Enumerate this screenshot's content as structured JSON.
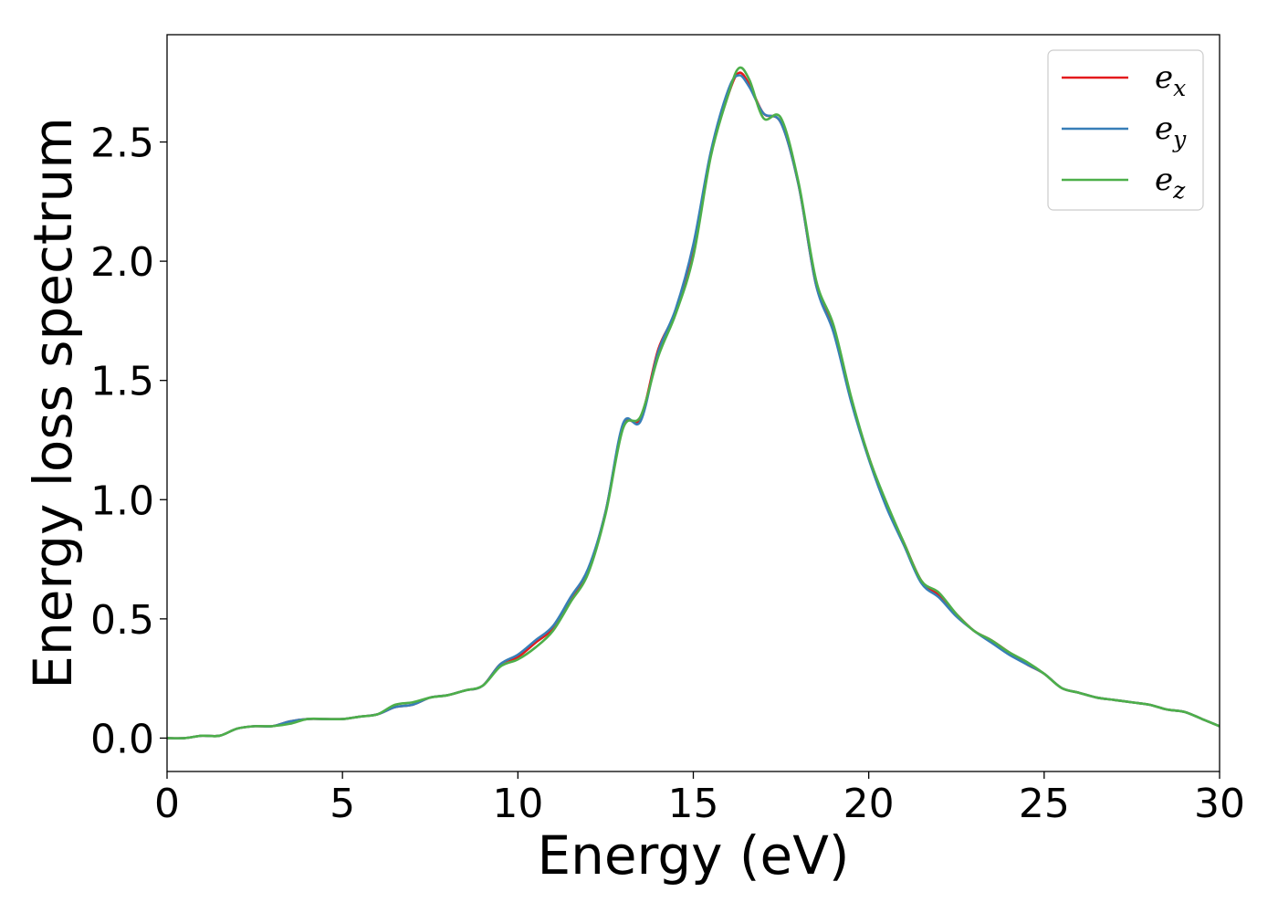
{
  "chart_data": {
    "type": "line",
    "title": "",
    "xlabel": "Energy (eV)",
    "ylabel": "Energy loss spectrum",
    "xlim": [
      0,
      30
    ],
    "ylim": [
      -0.14,
      2.95
    ],
    "xticks": [
      0,
      5,
      10,
      15,
      20,
      25,
      30
    ],
    "xtick_labels": [
      "0",
      "5",
      "10",
      "15",
      "20",
      "25",
      "30"
    ],
    "yticks": [
      0.0,
      0.5,
      1.0,
      1.5,
      2.0,
      2.5
    ],
    "ytick_labels": [
      "0.0",
      "0.5",
      "1.0",
      "1.5",
      "2.0",
      "2.5"
    ],
    "grid": false,
    "legend_position": "top-right",
    "series": [
      {
        "name": "e_x",
        "legend_base": "e",
        "legend_sub": "x",
        "color": "#e41a1c",
        "x": [
          0,
          0.5,
          1,
          1.5,
          2,
          2.5,
          3,
          3.5,
          4,
          4.5,
          5,
          5.5,
          6,
          6.5,
          7,
          7.5,
          8,
          8.5,
          9,
          9.5,
          10,
          10.5,
          11,
          11.5,
          12,
          12.5,
          13,
          13.5,
          14,
          14.5,
          15,
          15.5,
          16,
          16.3,
          16.6,
          17,
          17.5,
          18,
          18.5,
          19,
          19.5,
          20,
          20.5,
          21,
          21.5,
          22,
          22.5,
          23,
          23.5,
          24,
          24.5,
          25,
          25.5,
          26,
          26.5,
          27,
          27.5,
          28,
          28.5,
          29,
          29.5,
          30
        ],
        "y": [
          0.0,
          0.0,
          0.01,
          0.01,
          0.04,
          0.05,
          0.05,
          0.07,
          0.08,
          0.08,
          0.08,
          0.09,
          0.1,
          0.13,
          0.14,
          0.17,
          0.18,
          0.2,
          0.22,
          0.31,
          0.34,
          0.4,
          0.46,
          0.58,
          0.7,
          0.95,
          1.31,
          1.34,
          1.63,
          1.79,
          2.05,
          2.45,
          2.7,
          2.79,
          2.74,
          2.62,
          2.58,
          2.32,
          1.9,
          1.72,
          1.42,
          1.18,
          0.98,
          0.82,
          0.66,
          0.6,
          0.52,
          0.45,
          0.41,
          0.36,
          0.31,
          0.27,
          0.21,
          0.19,
          0.17,
          0.16,
          0.15,
          0.14,
          0.12,
          0.11,
          0.08,
          0.05
        ]
      },
      {
        "name": "e_y",
        "legend_base": "e",
        "legend_sub": "y",
        "color": "#377eb8",
        "x": [
          0,
          0.5,
          1,
          1.5,
          2,
          2.5,
          3,
          3.5,
          4,
          4.5,
          5,
          5.5,
          6,
          6.5,
          7,
          7.5,
          8,
          8.5,
          9,
          9.5,
          10,
          10.5,
          11,
          11.5,
          12,
          12.5,
          13,
          13.5,
          14,
          14.5,
          15,
          15.5,
          16,
          16.3,
          16.6,
          17,
          17.5,
          18,
          18.5,
          19,
          19.5,
          20,
          20.5,
          21,
          21.5,
          22,
          22.5,
          23,
          23.5,
          24,
          24.5,
          25,
          25.5,
          26,
          26.5,
          27,
          27.5,
          28,
          28.5,
          29,
          29.5,
          30
        ],
        "y": [
          0.0,
          0.0,
          0.01,
          0.01,
          0.04,
          0.05,
          0.05,
          0.07,
          0.08,
          0.08,
          0.08,
          0.09,
          0.1,
          0.13,
          0.14,
          0.17,
          0.18,
          0.2,
          0.22,
          0.31,
          0.35,
          0.41,
          0.47,
          0.59,
          0.71,
          0.95,
          1.32,
          1.33,
          1.62,
          1.8,
          2.07,
          2.46,
          2.72,
          2.78,
          2.73,
          2.62,
          2.58,
          2.32,
          1.9,
          1.7,
          1.41,
          1.17,
          0.97,
          0.81,
          0.65,
          0.59,
          0.51,
          0.45,
          0.4,
          0.35,
          0.31,
          0.27,
          0.21,
          0.19,
          0.17,
          0.16,
          0.15,
          0.14,
          0.12,
          0.11,
          0.08,
          0.05
        ]
      },
      {
        "name": "e_z",
        "legend_base": "e",
        "legend_sub": "z",
        "color": "#4daf4a",
        "x": [
          0,
          0.5,
          1,
          1.5,
          2,
          2.5,
          3,
          3.5,
          4,
          4.5,
          5,
          5.5,
          6,
          6.5,
          7,
          7.5,
          8,
          8.5,
          9,
          9.5,
          10,
          10.5,
          11,
          11.5,
          12,
          12.5,
          13,
          13.5,
          14,
          14.5,
          15,
          15.5,
          16,
          16.3,
          16.6,
          17,
          17.5,
          18,
          18.5,
          19,
          19.5,
          20,
          20.5,
          21,
          21.5,
          22,
          22.5,
          23,
          23.5,
          24,
          24.5,
          25,
          25.5,
          26,
          26.5,
          27,
          27.5,
          28,
          28.5,
          29,
          29.5,
          30
        ],
        "y": [
          0.0,
          0.0,
          0.01,
          0.01,
          0.04,
          0.05,
          0.05,
          0.06,
          0.08,
          0.08,
          0.08,
          0.09,
          0.1,
          0.14,
          0.15,
          0.17,
          0.18,
          0.2,
          0.22,
          0.3,
          0.33,
          0.38,
          0.45,
          0.57,
          0.69,
          0.94,
          1.3,
          1.35,
          1.6,
          1.78,
          2.02,
          2.44,
          2.7,
          2.81,
          2.76,
          2.6,
          2.6,
          2.33,
          1.92,
          1.73,
          1.43,
          1.18,
          0.99,
          0.82,
          0.66,
          0.61,
          0.52,
          0.45,
          0.41,
          0.36,
          0.32,
          0.27,
          0.21,
          0.19,
          0.17,
          0.16,
          0.15,
          0.14,
          0.12,
          0.11,
          0.08,
          0.05
        ]
      }
    ]
  }
}
